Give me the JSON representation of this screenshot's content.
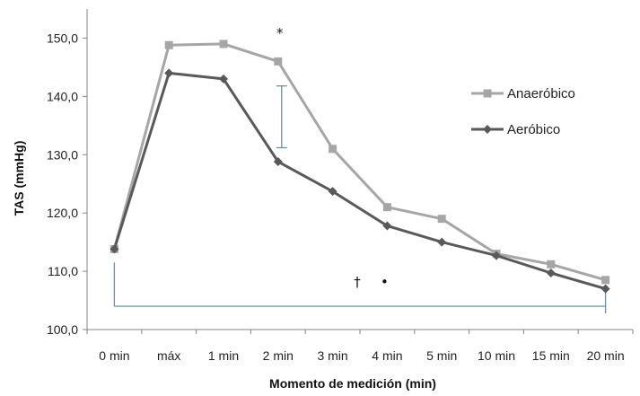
{
  "chart_data": {
    "type": "line",
    "title": "",
    "xlabel": "Momento de medición (min)",
    "ylabel": "TAS (mmHg)",
    "categories": [
      "0 min",
      "máx",
      "1 min",
      "2 min",
      "3 min",
      "4 min",
      "5 min",
      "10 min",
      "15 min",
      "20 min"
    ],
    "yticks": [
      "100,0",
      "110,0",
      "120,0",
      "130,0",
      "140,0",
      "150,0"
    ],
    "ylim": [
      100,
      155
    ],
    "legend_position": "right",
    "series": [
      {
        "name": "Anaeróbico",
        "color": "#a6a6a6",
        "marker": "square",
        "values": [
          113.8,
          148.8,
          149.0,
          146.0,
          131.0,
          121.0,
          119.0,
          113.0,
          111.2,
          108.5
        ]
      },
      {
        "name": "Aeróbico",
        "color": "#595959",
        "marker": "diamond",
        "values": [
          113.8,
          144.0,
          143.0,
          128.8,
          123.7,
          117.8,
          115.0,
          112.7,
          109.7,
          107.0
        ]
      }
    ],
    "annotations": {
      "asterisk": "*",
      "dagger": "†",
      "bullet": "•"
    },
    "annotation_color": "#6f8fa8"
  }
}
